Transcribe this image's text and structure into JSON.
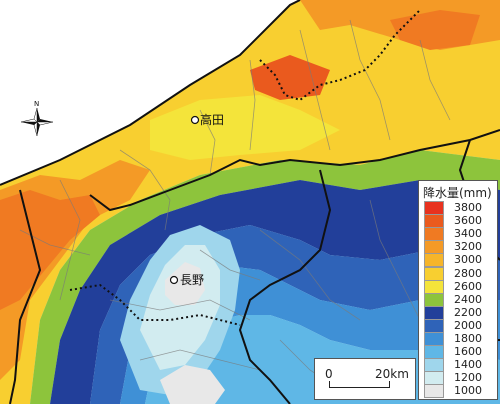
{
  "map": {
    "cities": [
      {
        "name": "高田"
      },
      {
        "name": "長野"
      }
    ],
    "compass_label": "N",
    "colors": {
      "sea": "#ffffff",
      "c3800": "#e8321f",
      "c3600": "#ea5a1e",
      "c3400": "#f07a22",
      "c3200": "#f49a26",
      "c3000": "#f6b52a",
      "c2800": "#f8cf30",
      "c2600": "#f4e43a",
      "c2400": "#8dc43c",
      "c2200": "#223f9a",
      "c2000": "#2f63b8",
      "c1800": "#3f90d6",
      "c1600": "#5fb7e6",
      "c1400": "#9fd6ec",
      "c1200": "#d2ecf0",
      "c1000": "#e8e8e8",
      "border": "#111111",
      "muni": "#7a7a7a"
    }
  },
  "legend": {
    "title": "降水量(mm)",
    "items": [
      {
        "label": "3800",
        "color": "#e8321f"
      },
      {
        "label": "3600",
        "color": "#ea5a1e"
      },
      {
        "label": "3400",
        "color": "#f07a22"
      },
      {
        "label": "3200",
        "color": "#f49a26"
      },
      {
        "label": "3000",
        "color": "#f6b52a"
      },
      {
        "label": "2800",
        "color": "#f8cf30"
      },
      {
        "label": "2600",
        "color": "#f4e43a"
      },
      {
        "label": "2400",
        "color": "#8dc43c"
      },
      {
        "label": "2200",
        "color": "#223f9a"
      },
      {
        "label": "2000",
        "color": "#2f63b8"
      },
      {
        "label": "1800",
        "color": "#3f90d6"
      },
      {
        "label": "1600",
        "color": "#5fb7e6"
      },
      {
        "label": "1400",
        "color": "#9fd6ec"
      },
      {
        "label": "1200",
        "color": "#d2ecf0"
      },
      {
        "label": "1000",
        "color": "#e8e8e8"
      }
    ]
  },
  "scale": {
    "start_label": "0",
    "end_label": "20km"
  }
}
